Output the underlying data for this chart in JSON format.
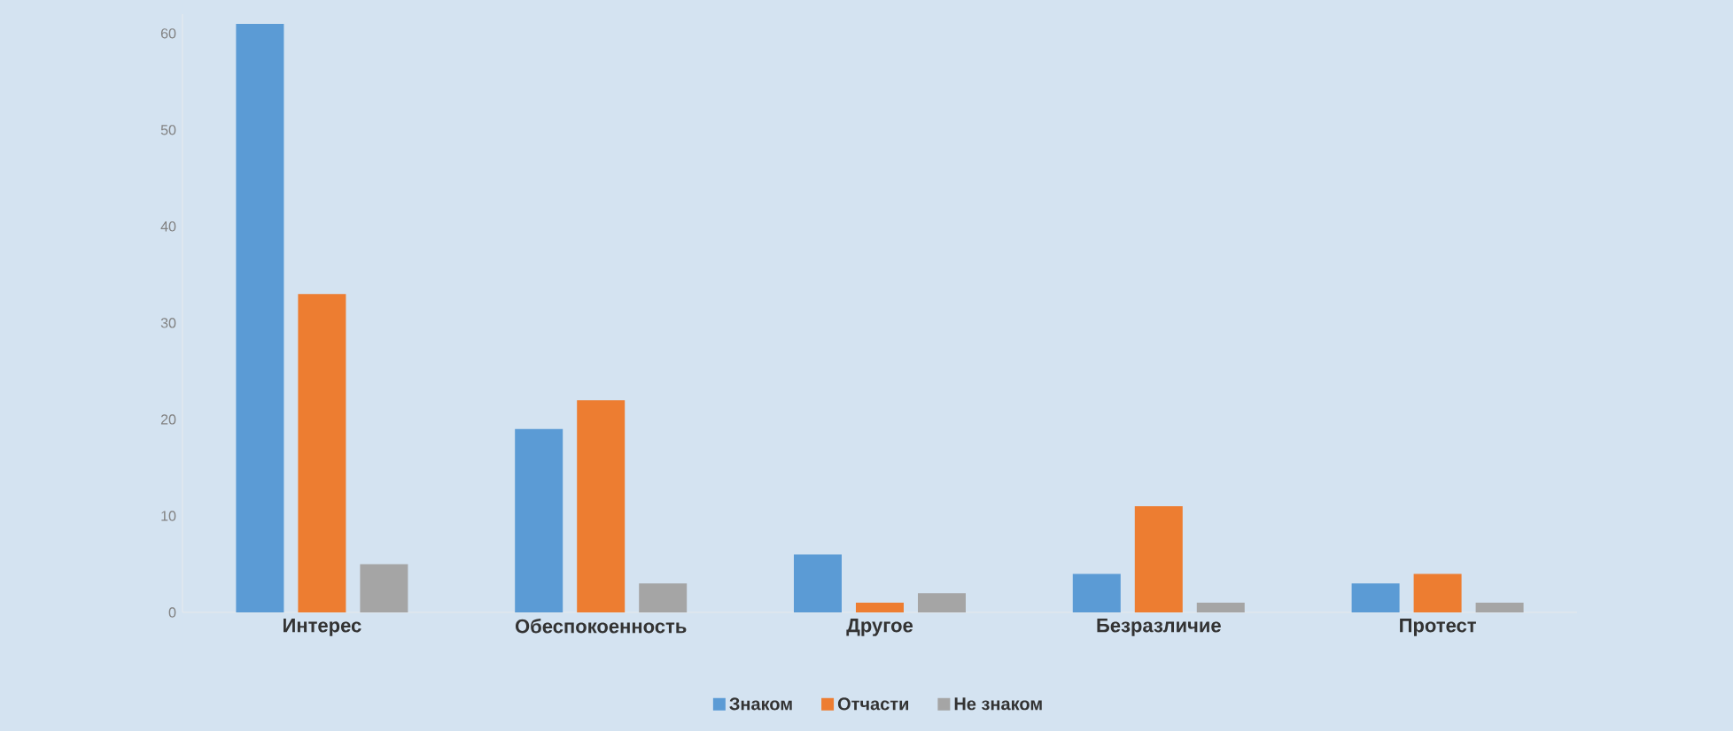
{
  "chart_data": {
    "type": "bar",
    "categories": [
      "Интерес",
      "Обеспокоенность",
      "Другое",
      "Безразличие",
      "Протест"
    ],
    "series": [
      {
        "name": "Знаком",
        "color": "#5b9bd5",
        "values": [
          61,
          19,
          6,
          4,
          3
        ]
      },
      {
        "name": "Отчасти",
        "color": "#ed7d31",
        "values": [
          33,
          22,
          1,
          11,
          4
        ]
      },
      {
        "name": "Не знаком",
        "color": "#a5a5a5",
        "values": [
          5,
          3,
          2,
          1,
          1
        ]
      }
    ],
    "ylim": [
      0,
      62
    ],
    "yticks": [
      0,
      10,
      20,
      30,
      40,
      50,
      60
    ],
    "legend": "bottom"
  }
}
